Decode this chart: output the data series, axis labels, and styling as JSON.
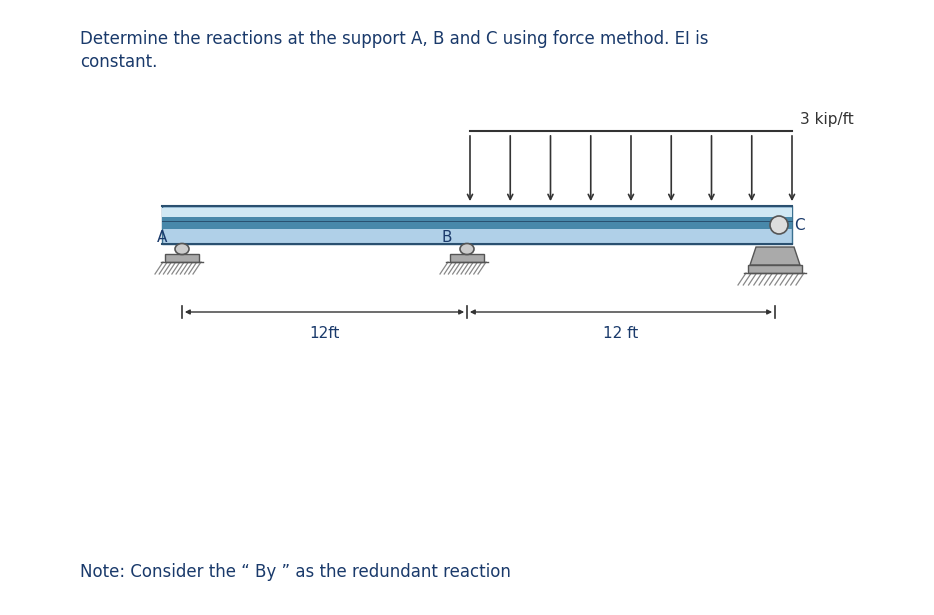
{
  "title_line1": "Determine the reactions at the support A, B and C using force method. EI is",
  "title_line2": "constant.",
  "note": "Note: Consider the “ By ” as the redundant reaction",
  "load_label": "3 kip/ft",
  "span_left_label": "12ft",
  "span_right_label": "12 ft",
  "bg_color": "#ffffff",
  "text_color": "#1a3a6b",
  "beam_face_color": "#a8cfe0",
  "beam_mid_color": "#5090b0",
  "beam_dark_color": "#2a6080"
}
